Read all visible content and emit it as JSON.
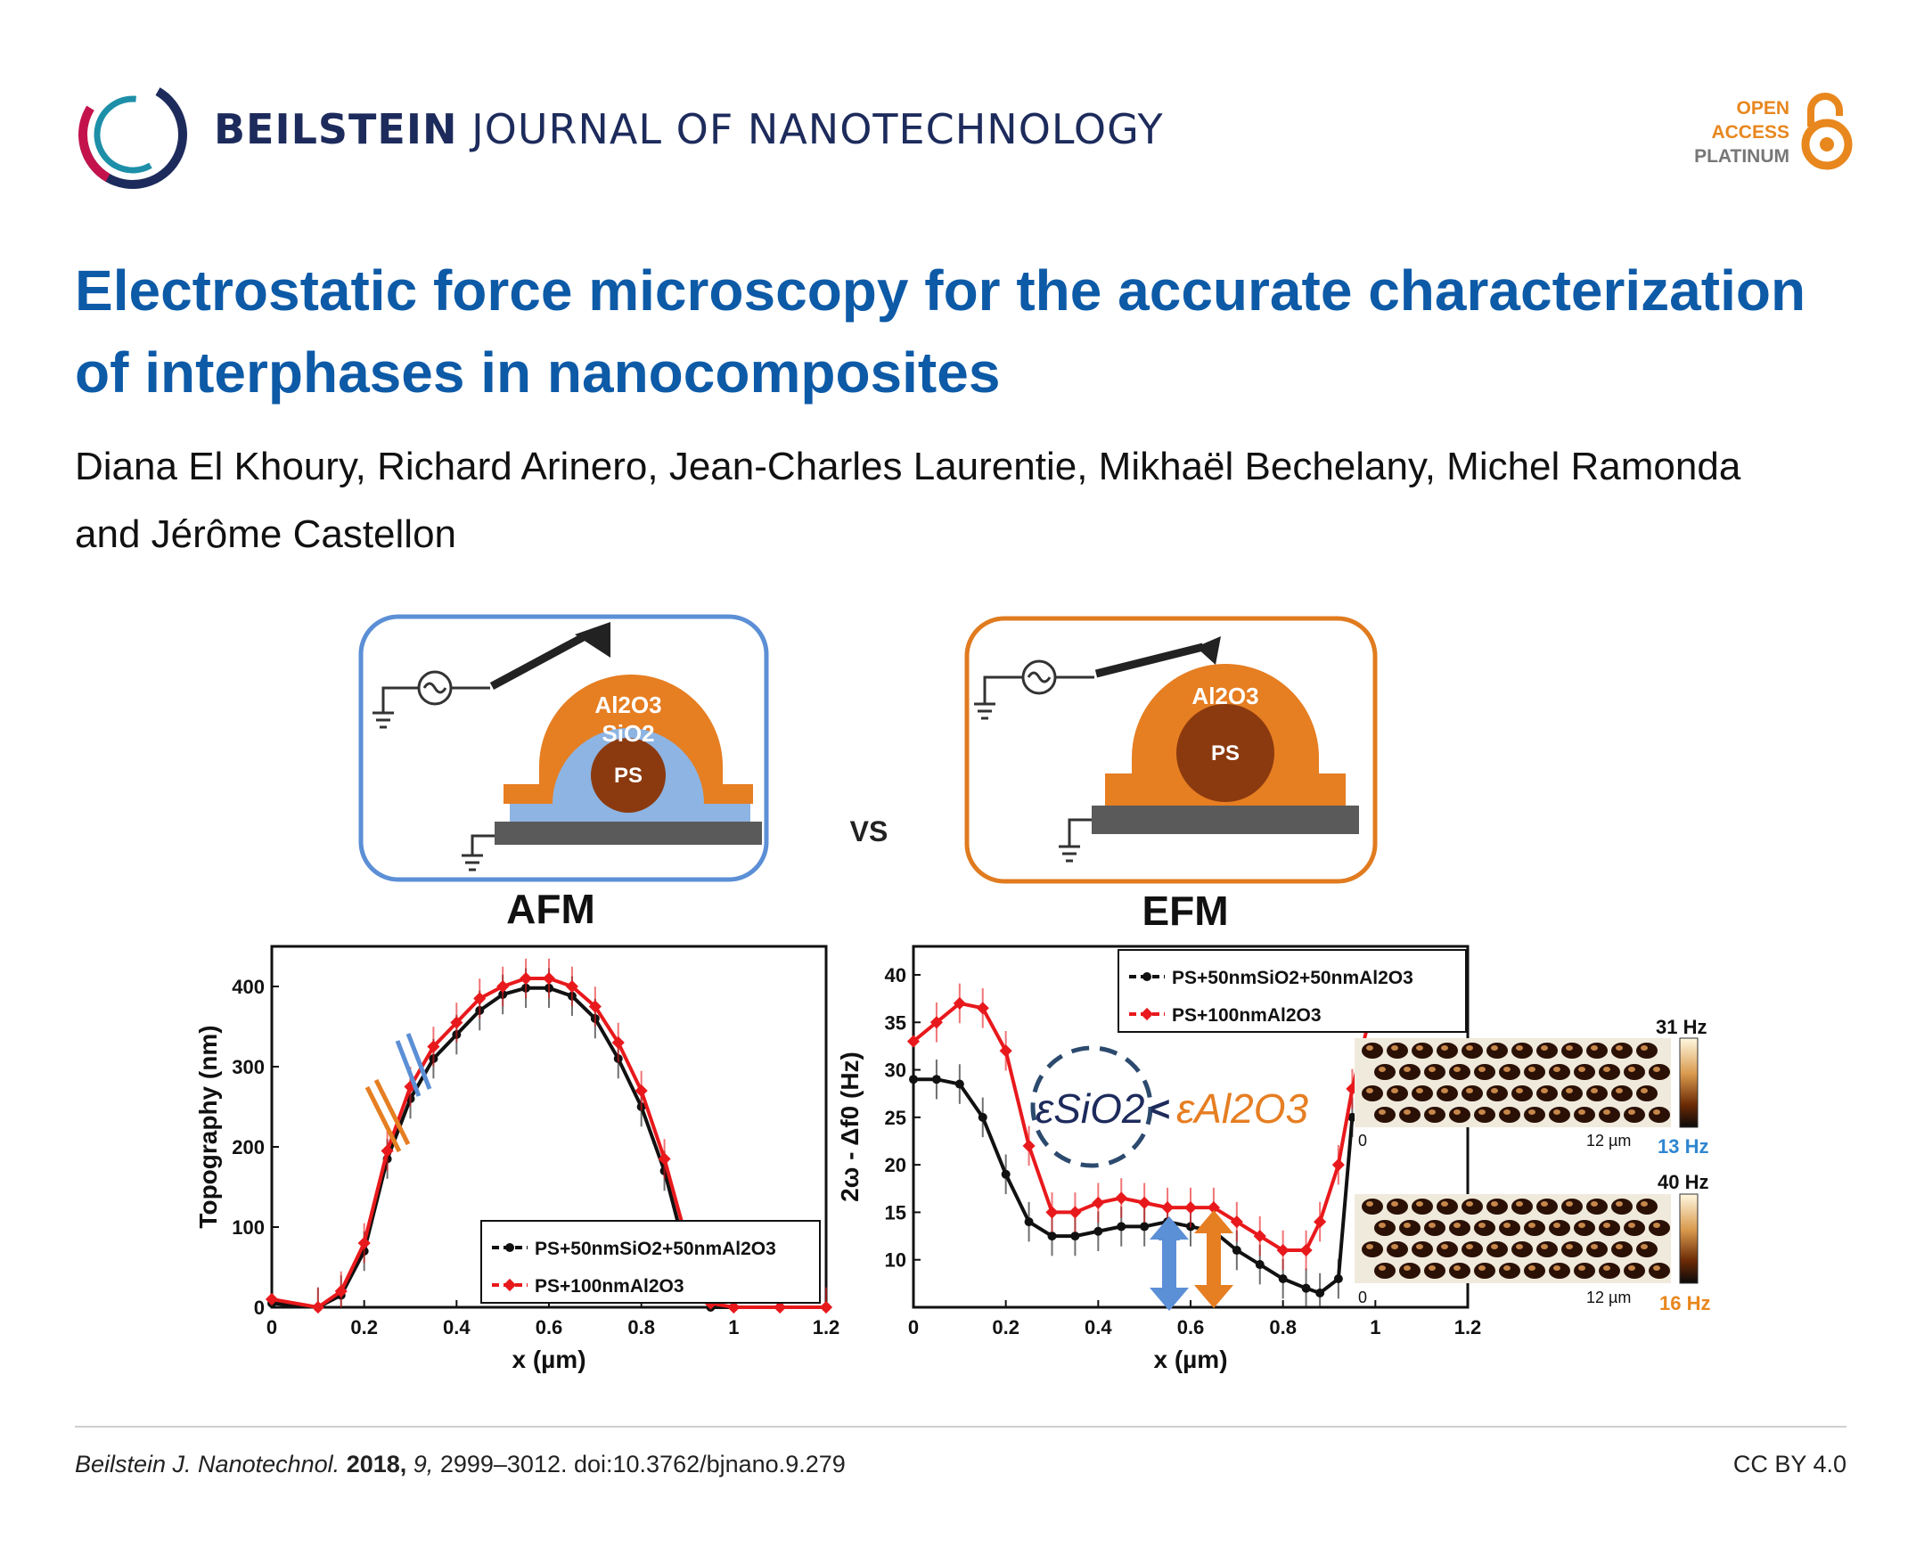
{
  "header": {
    "journal_bold": "BEILSTEIN",
    "journal_rest": " JOURNAL OF NANOTECHNOLOGY",
    "oa_line1": "OPEN",
    "oa_line2": "ACCESS",
    "oa_line3": "PLATINUM"
  },
  "article": {
    "title": "Electrostatic force microscopy for the accurate characterization of interphases in nanocomposites",
    "authors": "Diana El Khoury, Richard Arinero, Jean-Charles Laurentie, Mikhaël Bechelany, Michel Ramonda and Jérôme Castellon"
  },
  "figure": {
    "left_schematic": {
      "caption": "AFM",
      "layer_top": "Al2O3",
      "layer_mid": "SiO2",
      "core": "PS"
    },
    "right_schematic": {
      "caption": "EFM",
      "layer_top": "Al2O3",
      "core": "PS"
    },
    "vs_label": "VS",
    "epsilon_sio2": "εSiO2",
    "lt": "<",
    "epsilon_al2o3": "εAl2O3",
    "inset_top": {
      "max": "31 Hz",
      "min": "13 Hz",
      "scale": "12 µm",
      "origin": "0"
    },
    "inset_bottom": {
      "max": "40 Hz",
      "min": "16 Hz",
      "scale": "12 µm",
      "origin": "0"
    },
    "colors": {
      "blue_box": "#5b8fd6",
      "orange_box": "#e07b1f",
      "al2o3": "#e67e22",
      "sio2": "#8db4e2",
      "ps": "#8b3a0f",
      "substrate": "#5a5a5a",
      "min_top": "#2f86d1",
      "min_bottom": "#e8871e"
    }
  },
  "chart_data": [
    {
      "type": "line",
      "xlabel": "x (µm)",
      "ylabel": "Topography (nm)",
      "xlim": [
        0,
        1.2
      ],
      "ylim": [
        0,
        450
      ],
      "xticks": [
        "0",
        "0.2",
        "0.4",
        "0.6",
        "0.8",
        "1",
        "1.2"
      ],
      "yticks": [
        "0",
        "100",
        "200",
        "300",
        "400"
      ],
      "legend_position": "bottom-right",
      "series": [
        {
          "name": "PS+50nmSiO2+50nmAl2O3",
          "color": "#111111",
          "x": [
            0,
            0.1,
            0.15,
            0.2,
            0.25,
            0.3,
            0.35,
            0.4,
            0.45,
            0.5,
            0.55,
            0.6,
            0.65,
            0.7,
            0.75,
            0.8,
            0.85,
            0.9,
            0.95,
            1.0,
            1.1,
            1.2
          ],
          "y": [
            5,
            0,
            15,
            70,
            185,
            260,
            310,
            340,
            370,
            390,
            398,
            398,
            388,
            360,
            310,
            250,
            170,
            60,
            0,
            0,
            0,
            0
          ]
        },
        {
          "name": "PS+100nmAl2O3",
          "color": "#e8191c",
          "x": [
            0,
            0.1,
            0.15,
            0.2,
            0.25,
            0.3,
            0.35,
            0.4,
            0.45,
            0.5,
            0.55,
            0.6,
            0.65,
            0.7,
            0.75,
            0.8,
            0.85,
            0.9,
            0.95,
            1.0,
            1.1,
            1.2
          ],
          "y": [
            10,
            0,
            20,
            80,
            195,
            275,
            325,
            355,
            385,
            400,
            410,
            410,
            400,
            375,
            330,
            270,
            185,
            80,
            5,
            0,
            0,
            0
          ]
        }
      ]
    },
    {
      "type": "line",
      "xlabel": "x (µm)",
      "ylabel": "2ω - Δf0 (Hz)",
      "xlim": [
        0,
        1.2
      ],
      "ylim": [
        5,
        43
      ],
      "xticks": [
        "0",
        "0.2",
        "0.4",
        "0.6",
        "0.8",
        "1",
        "1.2"
      ],
      "yticks": [
        "10",
        "15",
        "20",
        "25",
        "30",
        "35",
        "40"
      ],
      "legend_position": "top-right",
      "series": [
        {
          "name": "PS+50nmSiO2+50nmAl2O3",
          "color": "#111111",
          "x": [
            0,
            0.05,
            0.1,
            0.15,
            0.2,
            0.25,
            0.3,
            0.35,
            0.4,
            0.45,
            0.5,
            0.55,
            0.6,
            0.65,
            0.7,
            0.75,
            0.8,
            0.85,
            0.88,
            0.92,
            0.95
          ],
          "y": [
            29,
            29,
            28.5,
            25,
            19,
            14,
            12.5,
            12.5,
            13,
            13.5,
            13.5,
            14,
            13.5,
            13,
            11,
            9.5,
            8,
            7,
            6.5,
            8,
            25
          ]
        },
        {
          "name": "PS+100nmAl2O3",
          "color": "#e8191c",
          "x": [
            0,
            0.05,
            0.1,
            0.15,
            0.2,
            0.25,
            0.3,
            0.35,
            0.4,
            0.45,
            0.5,
            0.55,
            0.6,
            0.65,
            0.7,
            0.75,
            0.8,
            0.85,
            0.88,
            0.92,
            0.95,
            1.0
          ],
          "y": [
            33,
            35,
            37,
            36.5,
            32,
            22,
            15,
            15,
            16,
            16.5,
            16,
            15.5,
            15.5,
            15.5,
            14,
            12.5,
            11,
            11,
            14,
            20,
            28,
            38
          ]
        }
      ]
    }
  ],
  "footer": {
    "journal_abbr": "Beilstein J. Nanotechnol.",
    "year": "2018,",
    "volume": "9,",
    "pages_doi": "2999–3012. doi:10.3762/bjnano.9.279",
    "license": "CC BY 4.0"
  }
}
